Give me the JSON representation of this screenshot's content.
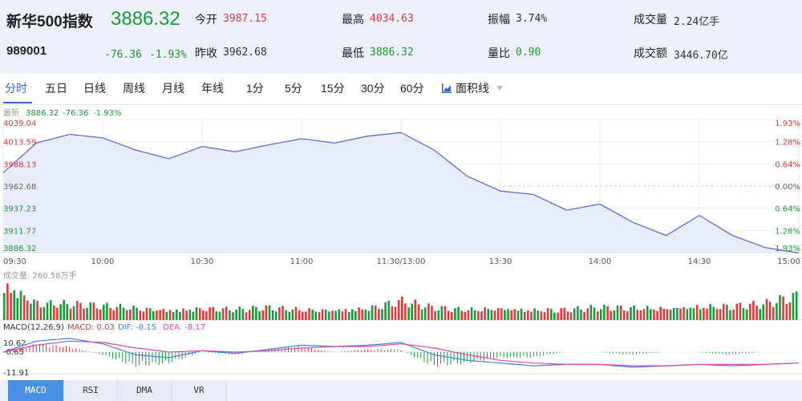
{
  "header": {
    "name": "新华500指数",
    "code": "989001",
    "price": "3886.32",
    "change": "-76.36",
    "change_pct": "-1.93%",
    "stats": [
      {
        "label": "今开",
        "value": "3987.15",
        "color": "red"
      },
      {
        "label": "昨收",
        "value": "3962.68",
        "color": "dark"
      },
      {
        "label": "最高",
        "value": "4034.63",
        "color": "red"
      },
      {
        "label": "最低",
        "value": "3886.32",
        "color": "green"
      },
      {
        "label": "振幅",
        "value": "3.74%",
        "color": "dark"
      },
      {
        "label": "量比",
        "value": "0.90",
        "color": "green"
      },
      {
        "label": "成交量",
        "value": "2.24亿手",
        "color": "dark"
      },
      {
        "label": "成交额",
        "value": "3446.70亿",
        "color": "dark"
      }
    ]
  },
  "tabs": [
    "分时",
    "五日",
    "日线",
    "周线",
    "月线",
    "年线",
    "1分",
    "5分",
    "15分",
    "30分",
    "60分"
  ],
  "active_tab": "分时",
  "chart_type_label": "面积线",
  "chart_type_icon": "area-chart-icon",
  "dropdown_icon": "triangle-down-icon",
  "chart": {
    "latest_label": "最新",
    "latest_price": "3886.32",
    "latest_change": "-76.36",
    "latest_change_pct": "-1.93%",
    "y_ticks_left": [
      "4039.04",
      "4013.59",
      "3988.13",
      "3962.68",
      "3937.23",
      "3911.77",
      "3886.32"
    ],
    "y_ticks_right": [
      "1.93%",
      "1.28%",
      "0.64%",
      "0.00%",
      "0.64%",
      "1.28%",
      "1.93%"
    ],
    "x_ticks": [
      "09:30",
      "10:00",
      "10:30",
      "11:00",
      "11:30/13:00",
      "13:30",
      "14:00",
      "14:30",
      "15:00"
    ],
    "volume_label": "成交量: 260.58万手",
    "macd_label": "MACD(12,26,9)",
    "macd_value": "MACD: 0.03",
    "dif_value": "DIF: -8.15",
    "dea_value": "DEA: -8.17",
    "macd_ticks": [
      "10.62",
      "-0.65",
      "-11.91"
    ]
  },
  "chart_data": {
    "type": "line",
    "ylim": [
      3886.32,
      4039.04
    ],
    "base": 3962.68,
    "x": [
      "09:30",
      "09:40",
      "09:50",
      "10:00",
      "10:10",
      "10:20",
      "10:30",
      "10:40",
      "10:50",
      "11:00",
      "11:10",
      "11:20",
      "11:30/13:00",
      "13:10",
      "13:20",
      "13:30",
      "13:40",
      "13:50",
      "14:00",
      "14:10",
      "14:20",
      "14:30",
      "14:40",
      "14:50",
      "15:00"
    ],
    "price": [
      3978,
      4012,
      4022,
      4018,
      4004,
      3994,
      4008,
      4002,
      4010,
      4017,
      4012,
      4020,
      4024,
      4004,
      3974,
      3957,
      3953,
      3935,
      3942,
      3921,
      3906,
      3929,
      3906,
      3892,
      3886
    ],
    "volume": [
      2.2,
      1.0,
      0.9,
      0.8,
      0.7,
      0.6,
      0.7,
      0.6,
      0.7,
      0.6,
      0.6,
      0.7,
      1.1,
      0.7,
      0.6,
      0.7,
      0.6,
      0.6,
      0.7,
      0.7,
      0.7,
      0.8,
      0.8,
      0.9,
      1.4
    ],
    "dif": [
      0,
      8,
      10,
      6,
      -2,
      -4,
      1,
      -1,
      2,
      5,
      4,
      5,
      7,
      -2,
      -6,
      -8,
      -10,
      -9,
      -9,
      -11,
      -10,
      -9,
      -10,
      -9,
      -8
    ],
    "dea": [
      0,
      5,
      8,
      7,
      3,
      0,
      1,
      0,
      1,
      3,
      4,
      4,
      6,
      3,
      -2,
      -6,
      -8,
      -9,
      -9,
      -10,
      -10,
      -9,
      -9,
      -9,
      -8
    ],
    "colors": {
      "line": "#5b6ee0",
      "fill": "#e3e8f8",
      "up": "#e03a3a",
      "down": "#1a9a3a",
      "dif": "#3a86e0",
      "dea": "#e04aa8"
    }
  },
  "bottom_tabs": [
    "MACD",
    "RSI",
    "DMA",
    "VR"
  ],
  "active_bottom_tab": "MACD"
}
